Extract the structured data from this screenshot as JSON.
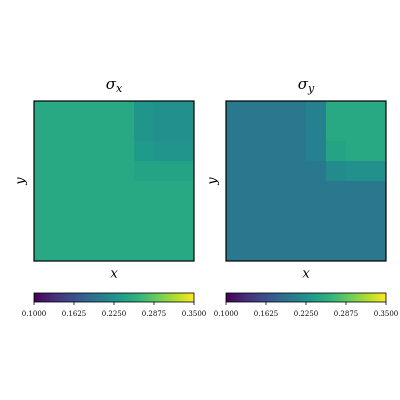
{
  "chart_data": [
    {
      "type": "heatmap",
      "title": [
        "σ",
        "x"
      ],
      "xlabel": "x",
      "ylabel": "y",
      "colormap": "viridis",
      "zlim": [
        0.1,
        0.35
      ],
      "zticks": [
        {
          "value": 0.1,
          "label": "0.1000"
        },
        {
          "value": 0.1625,
          "label": "0.1625"
        },
        {
          "value": 0.225,
          "label": "0.2250"
        },
        {
          "value": 0.2875,
          "label": "0.2875"
        },
        {
          "value": 0.35,
          "label": "0.3500"
        }
      ],
      "values": [
        [
          0.25,
          0.25,
          0.25,
          0.25,
          0.25,
          0.23,
          0.225,
          0.225
        ],
        [
          0.25,
          0.25,
          0.25,
          0.25,
          0.25,
          0.23,
          0.225,
          0.225
        ],
        [
          0.25,
          0.25,
          0.25,
          0.25,
          0.25,
          0.235,
          0.23,
          0.23
        ],
        [
          0.25,
          0.25,
          0.25,
          0.25,
          0.25,
          0.245,
          0.245,
          0.245
        ],
        [
          0.25,
          0.25,
          0.25,
          0.25,
          0.25,
          0.25,
          0.25,
          0.25
        ],
        [
          0.25,
          0.25,
          0.25,
          0.25,
          0.25,
          0.25,
          0.25,
          0.25
        ],
        [
          0.25,
          0.25,
          0.25,
          0.25,
          0.25,
          0.25,
          0.25,
          0.25
        ],
        [
          0.25,
          0.25,
          0.25,
          0.25,
          0.25,
          0.25,
          0.25,
          0.25
        ]
      ]
    },
    {
      "type": "heatmap",
      "title": [
        "σ",
        "y"
      ],
      "xlabel": "x",
      "ylabel": "y",
      "colormap": "viridis",
      "zlim": [
        0.1,
        0.35
      ],
      "zticks": [
        {
          "value": 0.1,
          "label": "0.1000"
        },
        {
          "value": 0.1625,
          "label": "0.1625"
        },
        {
          "value": 0.225,
          "label": "0.2250"
        },
        {
          "value": 0.2875,
          "label": "0.2875"
        },
        {
          "value": 0.35,
          "label": "0.3500"
        }
      ],
      "values": [
        [
          0.2,
          0.2,
          0.2,
          0.2,
          0.21,
          0.25,
          0.25,
          0.25
        ],
        [
          0.2,
          0.2,
          0.2,
          0.2,
          0.21,
          0.25,
          0.25,
          0.25
        ],
        [
          0.2,
          0.2,
          0.2,
          0.2,
          0.21,
          0.245,
          0.25,
          0.25
        ],
        [
          0.2,
          0.2,
          0.2,
          0.2,
          0.2,
          0.22,
          0.225,
          0.225
        ],
        [
          0.2,
          0.2,
          0.2,
          0.2,
          0.2,
          0.2,
          0.2,
          0.2
        ],
        [
          0.2,
          0.2,
          0.2,
          0.2,
          0.2,
          0.2,
          0.2,
          0.2
        ],
        [
          0.2,
          0.2,
          0.2,
          0.2,
          0.2,
          0.2,
          0.2,
          0.2
        ],
        [
          0.2,
          0.2,
          0.2,
          0.2,
          0.2,
          0.2,
          0.2,
          0.2
        ]
      ]
    }
  ]
}
